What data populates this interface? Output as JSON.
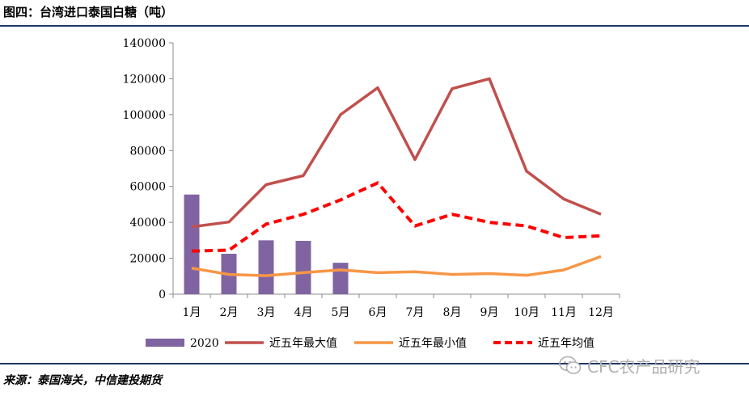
{
  "header": {
    "title": "图四：台湾进口泰国白糖（吨）"
  },
  "footer": {
    "source": "来源：泰国海关，中信建投期货"
  },
  "watermark": {
    "text": "CFC农产品研究",
    "icon": "wechat-icon"
  },
  "chart_data": {
    "type": "bar",
    "categories": [
      "1月",
      "2月",
      "3月",
      "4月",
      "5月",
      "6月",
      "7月",
      "8月",
      "9月",
      "10月",
      "11月",
      "12月"
    ],
    "ylim": [
      0,
      140000
    ],
    "yticks": [
      0,
      20000,
      40000,
      60000,
      80000,
      100000,
      120000,
      140000
    ],
    "grid": false,
    "legend_position": "bottom",
    "series": [
      {
        "name": "2020",
        "type": "bar",
        "color": "#8064a2",
        "values": [
          55500,
          22500,
          30000,
          29700,
          17500,
          null,
          null,
          null,
          null,
          null,
          null,
          null
        ]
      },
      {
        "name": "近五年最大值",
        "type": "line",
        "color": "#c0504d",
        "style": "solid",
        "values": [
          37500,
          40200,
          61000,
          66000,
          100000,
          115000,
          75000,
          114500,
          120000,
          68500,
          53000,
          44500
        ]
      },
      {
        "name": "近五年最小值",
        "type": "line",
        "color": "#f79646",
        "style": "solid",
        "values": [
          14500,
          11000,
          10300,
          12000,
          13500,
          12000,
          12500,
          11000,
          11500,
          10500,
          13500,
          21000
        ]
      },
      {
        "name": "近五年均值",
        "type": "line",
        "color": "#ff0000",
        "style": "dashed",
        "values": [
          24000,
          24500,
          39000,
          44500,
          52500,
          62000,
          38000,
          44500,
          40000,
          38000,
          31500,
          32500
        ]
      }
    ]
  }
}
